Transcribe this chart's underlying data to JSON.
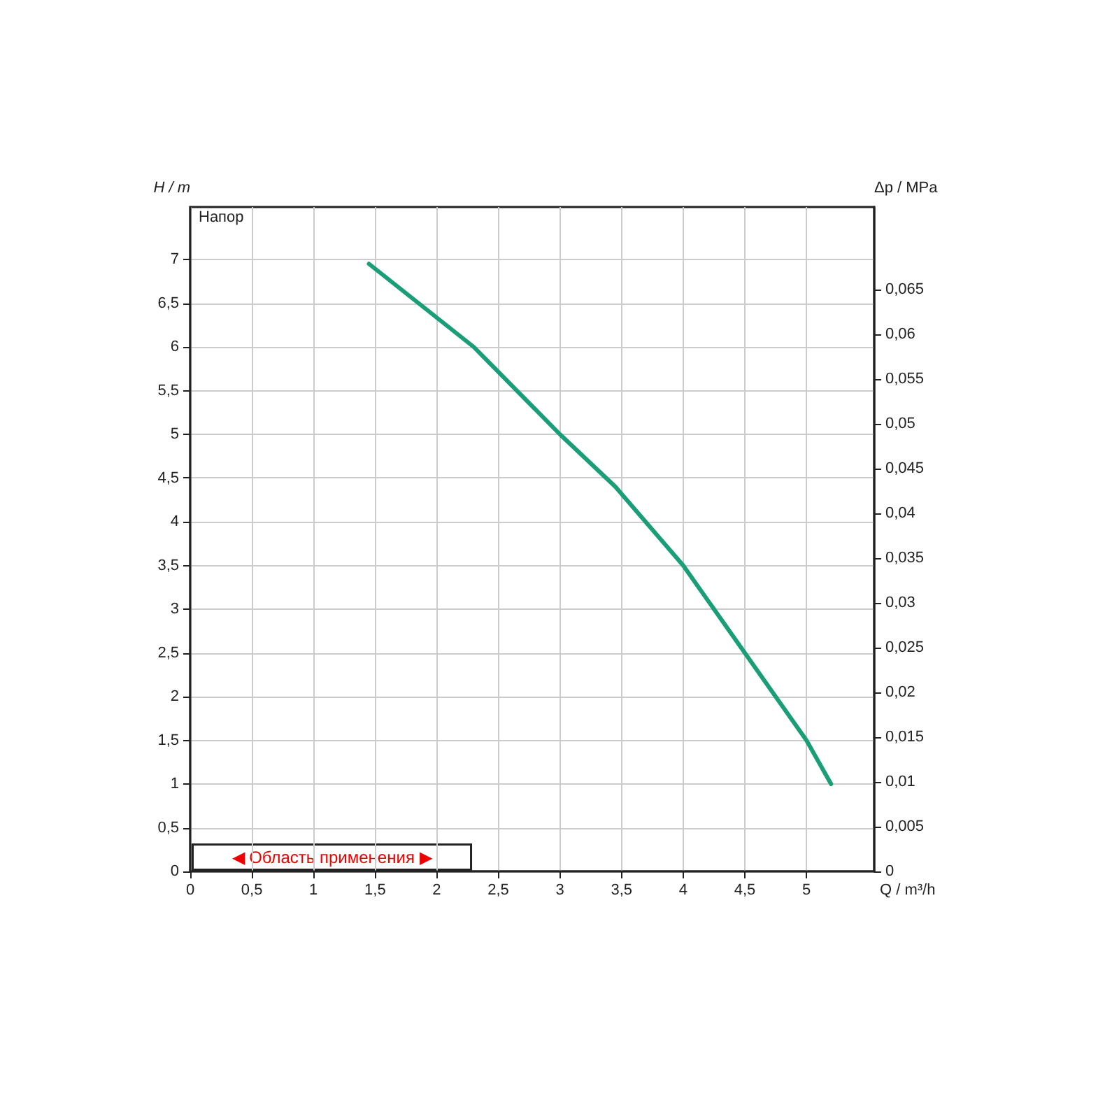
{
  "chart_data": {
    "type": "line",
    "xlabel": "Q / m³/h",
    "ylabel": "H / m",
    "y2label": "Δp / MPa",
    "annotations": [
      "Напор",
      "◀ Область применения ▶"
    ],
    "x": [
      1.45,
      2.3,
      3.0,
      3.45,
      4.0,
      4.5,
      5.0,
      5.2
    ],
    "series": [
      {
        "color": "#1a9e78",
        "values": [
          6.95,
          6.0,
          5.0,
          4.4,
          3.5,
          2.5,
          1.5,
          1.0
        ]
      }
    ],
    "xlim": [
      0,
      5.55
    ],
    "xticks": [
      0,
      {
        "value": 0.5,
        "label": "0,5"
      },
      1,
      {
        "value": 1.5,
        "label": "1,5"
      },
      2,
      {
        "value": 2.5,
        "label": "2,5"
      },
      3,
      {
        "value": 3.5,
        "label": "3,5"
      },
      4,
      {
        "value": 4.5,
        "label": "4,5"
      },
      5
    ],
    "ylim": [
      0,
      7.6
    ],
    "yticks": [
      0,
      {
        "value": 0.5,
        "label": "0,5"
      },
      1,
      {
        "value": 1.5,
        "label": "1,5"
      },
      2,
      {
        "value": 2.5,
        "label": "2,5"
      },
      3,
      {
        "value": 3.5,
        "label": "3,5"
      },
      4,
      {
        "value": 4.5,
        "label": "4,5"
      },
      5,
      {
        "value": 5.5,
        "label": "5,5"
      },
      6,
      {
        "value": 6.5,
        "label": "6,5"
      },
      7
    ],
    "y2lim": [
      0,
      0.0742
    ],
    "y2ticks": [
      0,
      {
        "value": 0.005,
        "label": "0,005"
      },
      {
        "value": 0.01,
        "label": "0,01"
      },
      {
        "value": 0.015,
        "label": "0,015"
      },
      {
        "value": 0.02,
        "label": "0,02"
      },
      {
        "value": 0.025,
        "label": "0,025"
      },
      {
        "value": 0.03,
        "label": "0,03"
      },
      {
        "value": 0.035,
        "label": "0,035"
      },
      {
        "value": 0.04,
        "label": "0,04"
      },
      {
        "value": 0.045,
        "label": "0,045"
      },
      {
        "value": 0.05,
        "label": "0,05"
      },
      {
        "value": 0.055,
        "label": "0,055"
      },
      {
        "value": 0.06,
        "label": "0,06"
      },
      {
        "value": 0.065,
        "label": "0,065"
      }
    ],
    "grid": true,
    "marker": "none",
    "line_style": "solid"
  }
}
